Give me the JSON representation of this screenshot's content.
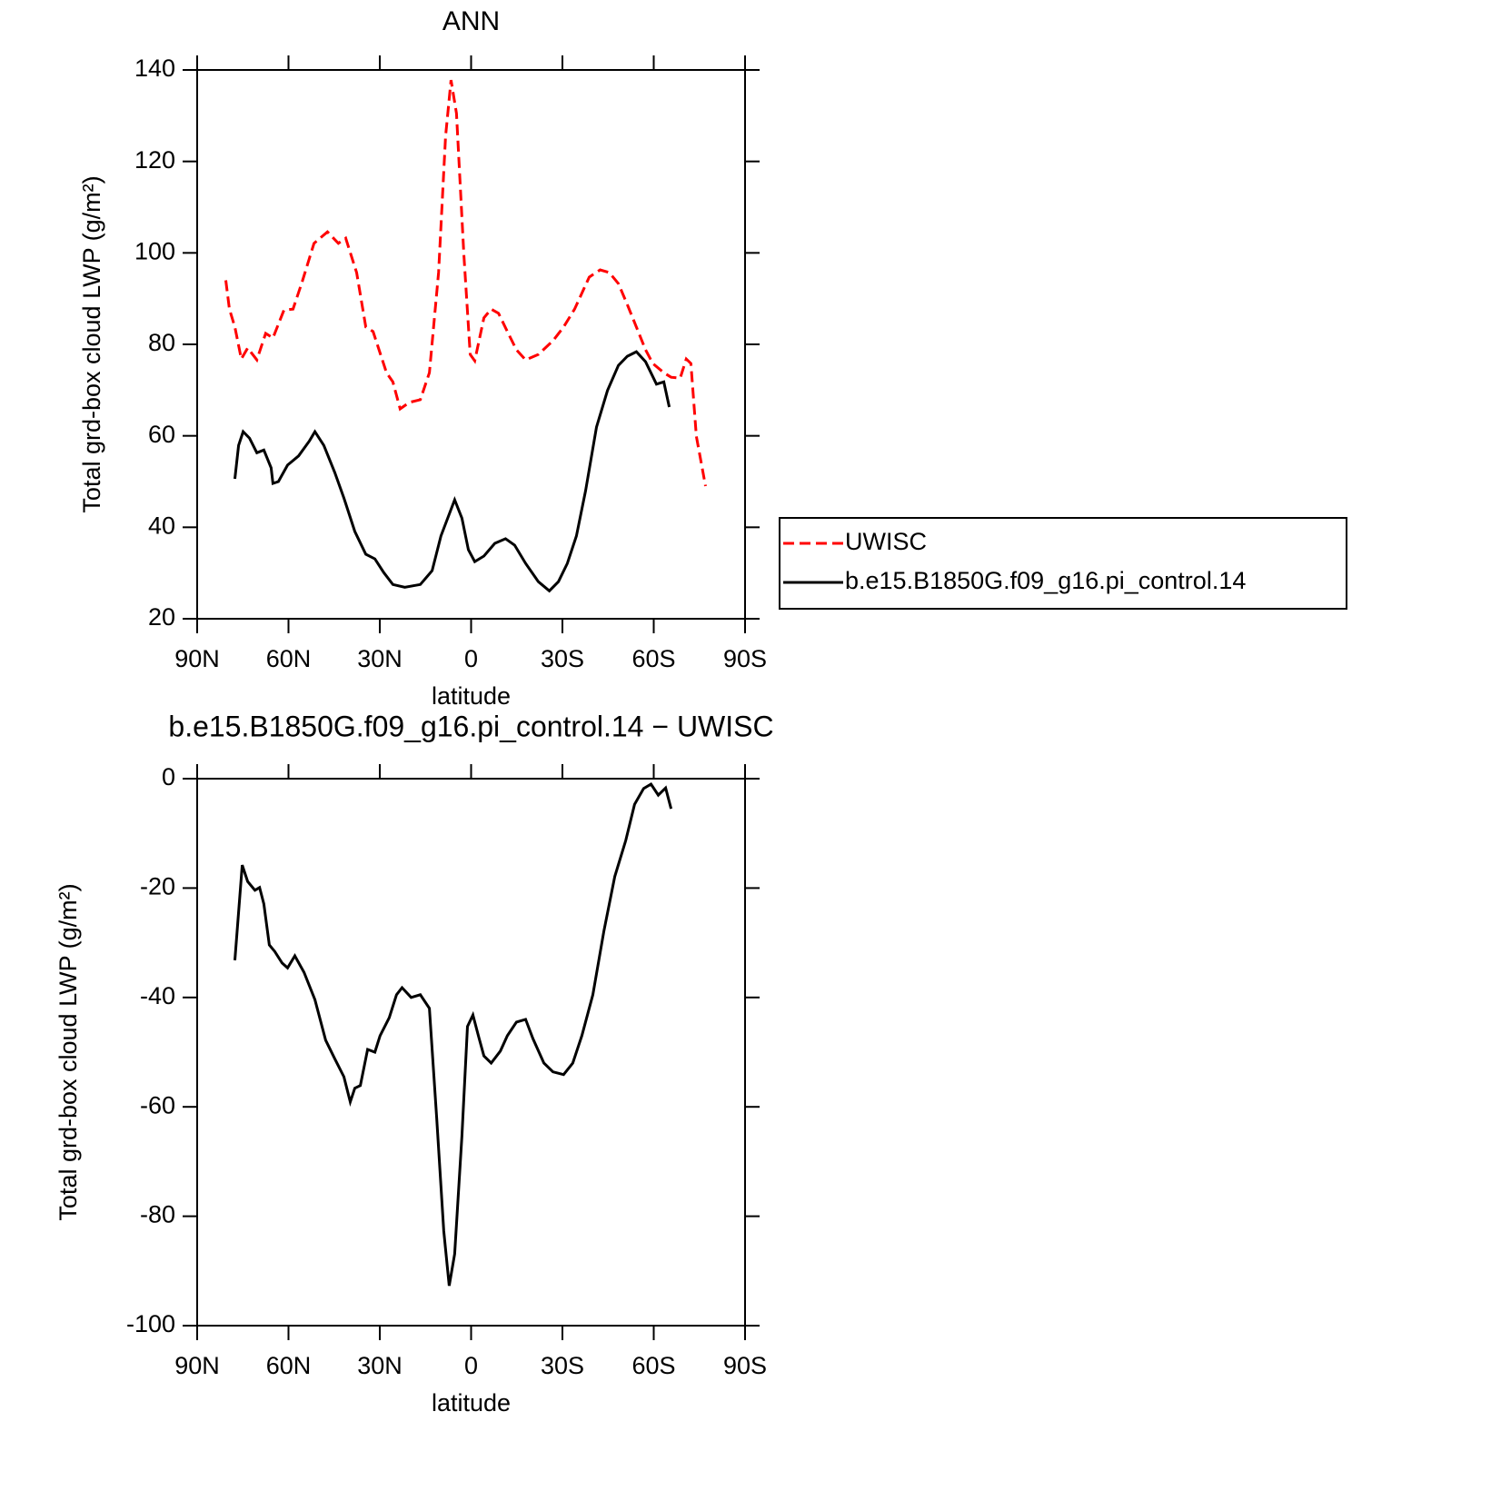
{
  "chart_data": [
    {
      "type": "line",
      "title": "ANN",
      "x_label": "latitude",
      "y_label": "Total grd-box cloud LWP (g/m²)",
      "xlim": [
        90,
        -90
      ],
      "xticks": [
        {
          "value": 90,
          "label": "90N"
        },
        {
          "value": 60,
          "label": "60N"
        },
        {
          "value": 30,
          "label": "30N"
        },
        0,
        {
          "value": -30,
          "label": "30S"
        },
        {
          "value": -60,
          "label": "60S"
        },
        {
          "value": -90,
          "label": "90S"
        }
      ],
      "ylim": [
        20,
        140
      ],
      "yticks": [
        20,
        40,
        60,
        80,
        100,
        120,
        140
      ],
      "legend": "outside-right",
      "series": [
        {
          "name": "UWISC",
          "color": "#ff0000",
          "dashed": true,
          "x": [
            80.6,
            79.4,
            77.6,
            75.5,
            73.4,
            70.4,
            67.5,
            65.1,
            61.5,
            58.5,
            55.5,
            51.6,
            47.2,
            43.6,
            41.2,
            37.6,
            34.6,
            32.2,
            27.8,
            25.7,
            23.3,
            20.3,
            16.7,
            13.7,
            10.7,
            8.4,
            6.6,
            4.8,
            2.4,
            0.3,
            -1.2,
            -4.2,
            -6.6,
            -9.0,
            -11.9,
            -14.9,
            -17.9,
            -22.1,
            -26.9,
            -30.4,
            -34.0,
            -38.8,
            -42.4,
            -45.4,
            -48.4,
            -51.3,
            -54.3,
            -57.3,
            -59.7,
            -63.3,
            -65.7,
            -68.7,
            -70.7,
            -72.2,
            -74.0,
            -77.0
          ],
          "values": [
            94,
            87.7,
            83.8,
            76.8,
            79.2,
            76.6,
            82.4,
            81.4,
            87.5,
            87.7,
            93.7,
            102.1,
            104.6,
            102.1,
            103.2,
            95.7,
            83.8,
            82.8,
            73.8,
            71.8,
            65.9,
            67.3,
            67.9,
            73.8,
            95.7,
            125.5,
            137.8,
            130.5,
            99.7,
            77.8,
            76.4,
            85.8,
            87.7,
            86.8,
            82.8,
            78.8,
            76.6,
            77.8,
            80.8,
            83.8,
            87.7,
            94.7,
            96.3,
            95.7,
            93.3,
            88.7,
            83.8,
            78.8,
            75.8,
            73.8,
            72.8,
            72.6,
            76.8,
            75.8,
            59.9,
            49.0
          ]
        },
        {
          "name": "b.e15.B1850G.f09_g16.pi_control.14",
          "color": "#000000",
          "dashed": false,
          "x": [
            77.6,
            76.4,
            74.9,
            72.8,
            70.4,
            68.1,
            65.7,
            65.1,
            63.3,
            60.3,
            56.7,
            53.1,
            51.3,
            48.4,
            44.8,
            41.8,
            38.2,
            34.6,
            31.6,
            28.7,
            25.7,
            21.8,
            16.7,
            12.8,
            9.9,
            5.4,
            3.0,
            0.9,
            -1.2,
            -4.2,
            -7.8,
            -11.3,
            -14.3,
            -17.9,
            -22.1,
            -25.7,
            -28.7,
            -31.6,
            -34.6,
            -37.6,
            -41.2,
            -44.8,
            -48.4,
            -51.3,
            -54.3,
            -57.3,
            -60.9,
            -63.3,
            -65.1
          ],
          "values": [
            50.6,
            57.9,
            60.9,
            59.5,
            56.3,
            56.9,
            53.0,
            49.6,
            50.0,
            53.6,
            55.6,
            58.9,
            60.9,
            57.9,
            52.0,
            46.4,
            39.1,
            34.1,
            33.1,
            30.1,
            27.5,
            26.9,
            27.5,
            30.5,
            38.1,
            46.0,
            42.0,
            35.1,
            32.5,
            33.7,
            36.5,
            37.5,
            36.1,
            32.1,
            28.1,
            26.1,
            28.1,
            32.1,
            38.1,
            48.0,
            61.9,
            69.9,
            75.4,
            77.4,
            78.4,
            76.2,
            71.3,
            71.8,
            66.3
          ]
        }
      ]
    },
    {
      "type": "line",
      "title": "b.e15.B1850G.f09_g16.pi_control.14 − UWISC",
      "x_label": "latitude",
      "y_label": "Total grd-box cloud LWP (g/m²)",
      "xlim": [
        90,
        -90
      ],
      "xticks": [
        {
          "value": 90,
          "label": "90N"
        },
        {
          "value": 60,
          "label": "60N"
        },
        {
          "value": 30,
          "label": "30N"
        },
        0,
        {
          "value": -30,
          "label": "30S"
        },
        {
          "value": -60,
          "label": "60S"
        },
        {
          "value": -90,
          "label": "90S"
        }
      ],
      "ylim": [
        -100,
        0
      ],
      "yticks": [
        -100,
        -80,
        -60,
        -40,
        -20,
        0
      ],
      "series": [
        {
          "color": "#000000",
          "dashed": false,
          "x": [
            77.6,
            75.2,
            73.4,
            71.0,
            69.5,
            68.1,
            66.3,
            64.5,
            62.1,
            60.3,
            57.9,
            54.9,
            51.3,
            47.8,
            44.8,
            41.8,
            39.7,
            38.2,
            36.4,
            34.0,
            31.6,
            29.9,
            26.9,
            24.5,
            22.7,
            19.7,
            16.7,
            13.7,
            11.3,
            9.0,
            7.2,
            5.4,
            3.0,
            1.2,
            -0.6,
            -2.4,
            -4.2,
            -6.6,
            -9.6,
            -11.9,
            -14.9,
            -17.9,
            -20.3,
            -23.9,
            -26.9,
            -30.4,
            -33.4,
            -36.4,
            -40.0,
            -43.6,
            -47.2,
            -50.8,
            -53.7,
            -56.7,
            -59.1,
            -61.5,
            -63.9,
            -65.7
          ],
          "values": [
            -33.2,
            -15.8,
            -18.8,
            -20.4,
            -19.9,
            -22.9,
            -30.4,
            -31.6,
            -33.7,
            -34.6,
            -32.4,
            -35.4,
            -40.4,
            -47.8,
            -51.2,
            -54.5,
            -59.1,
            -56.6,
            -56.1,
            -49.5,
            -50.0,
            -47.0,
            -43.7,
            -39.5,
            -38.2,
            -40.0,
            -39.5,
            -42.0,
            -62.0,
            -82.7,
            -92.7,
            -86.9,
            -65.3,
            -45.3,
            -43.2,
            -47.0,
            -50.7,
            -52.0,
            -49.8,
            -47.0,
            -44.5,
            -44.0,
            -47.5,
            -52.0,
            -53.6,
            -54.1,
            -52.0,
            -47.0,
            -39.5,
            -27.9,
            -17.9,
            -11.3,
            -4.7,
            -1.8,
            -1.0,
            -3.0,
            -1.7,
            -5.5
          ]
        }
      ]
    }
  ]
}
